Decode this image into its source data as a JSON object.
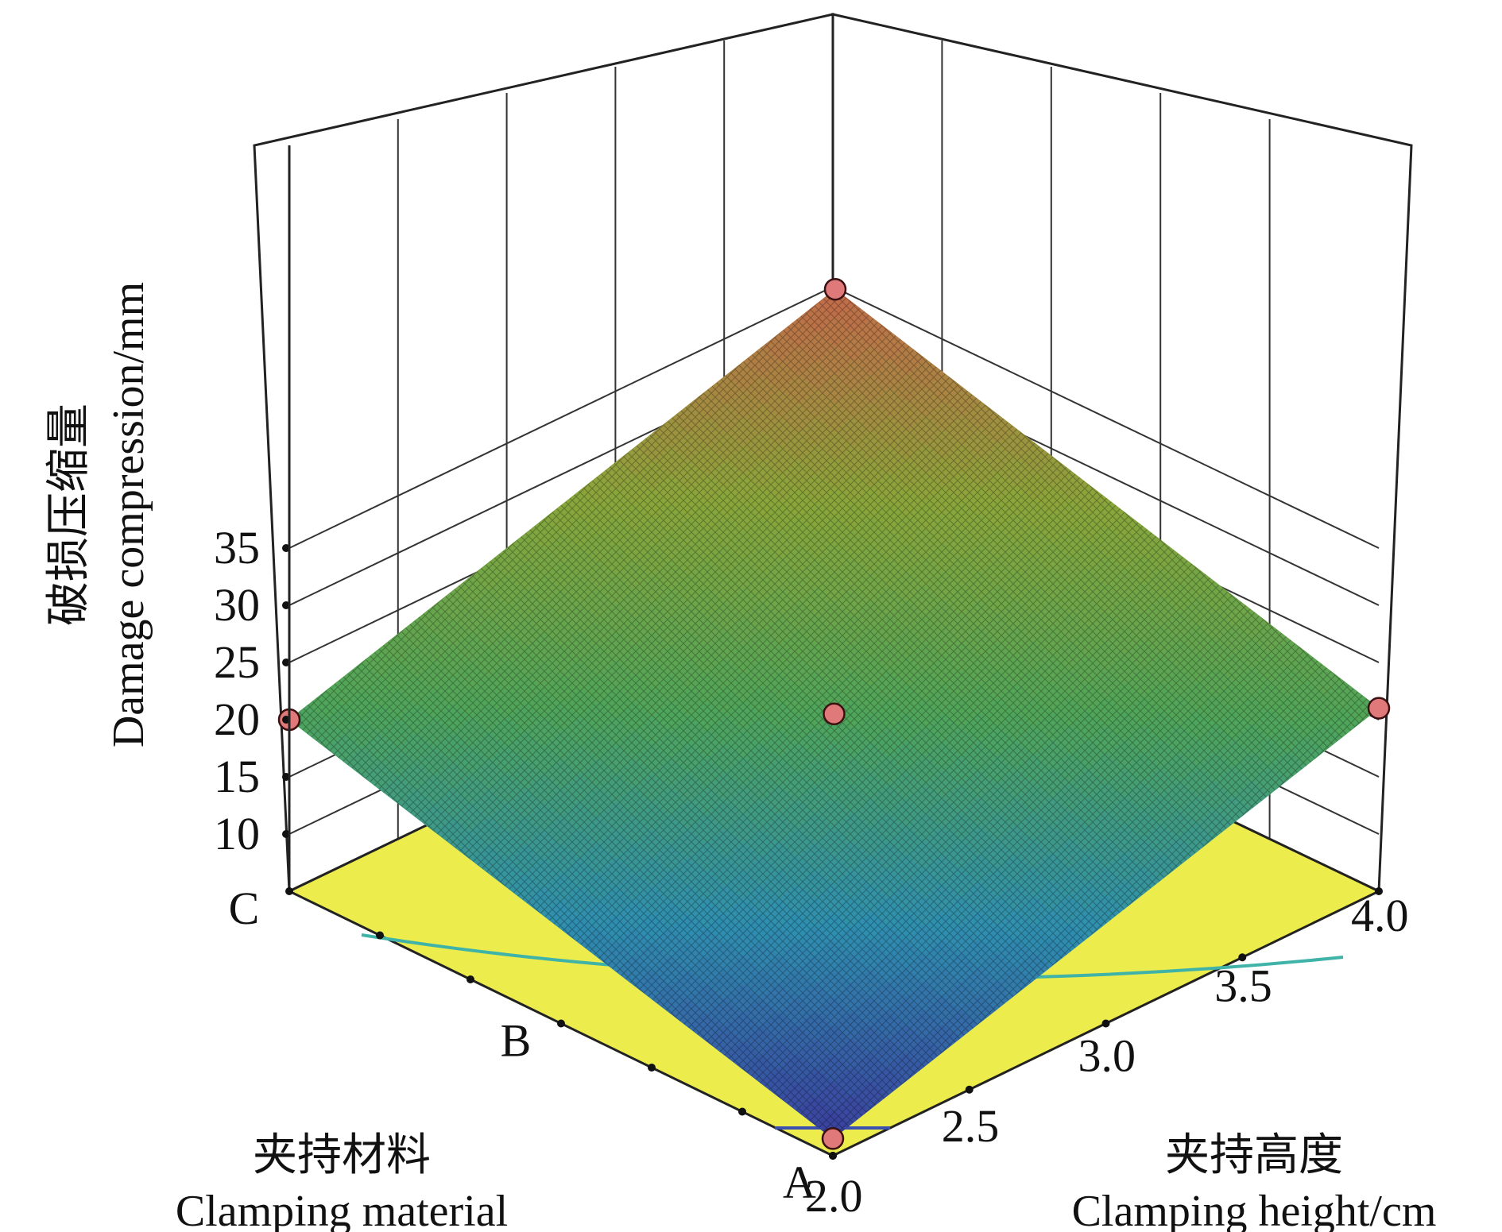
{
  "chart_data": {
    "type": "surface3d",
    "z_axis": {
      "title_cn": "破损压缩量",
      "title_en": "Damage compression/mm",
      "ticks": [
        10,
        15,
        20,
        25,
        30,
        35
      ],
      "range": [
        5,
        36
      ]
    },
    "x_axis": {
      "title_cn": "夹持材料",
      "title_en": "Clamping material",
      "categories": [
        "A",
        "B",
        "C"
      ]
    },
    "y_axis": {
      "title_cn": "夹持高度",
      "title_en": "Clamping height/cm",
      "ticks": [
        "2.0",
        "2.5",
        "3.0",
        "3.5",
        "4.0"
      ],
      "range": [
        2.0,
        4.0
      ]
    },
    "surface_corners": [
      {
        "material": "A",
        "height": 2.0,
        "z": 6.5
      },
      {
        "material": "C",
        "height": 2.0,
        "z": 20.0
      },
      {
        "material": "A",
        "height": 4.0,
        "z": 21.0
      },
      {
        "material": "C",
        "height": 4.0,
        "z": 34.5
      }
    ],
    "design_points": [
      {
        "material": "C",
        "height": 4.0,
        "z": 34.5
      },
      {
        "material": "B",
        "height": 3.0,
        "z": 20.5
      },
      {
        "material": "C",
        "height": 2.0,
        "z": 20.0
      },
      {
        "material": "A",
        "height": 4.0,
        "z": 21.0
      },
      {
        "material": "A",
        "height": 2.0,
        "z": 6.5
      }
    ],
    "colormap": [
      "#3a3f9e",
      "#2f8fb0",
      "#4fa55a",
      "#8aa63a",
      "#c46a4a"
    ],
    "floor_color": "#ecec4c",
    "grid": true
  }
}
